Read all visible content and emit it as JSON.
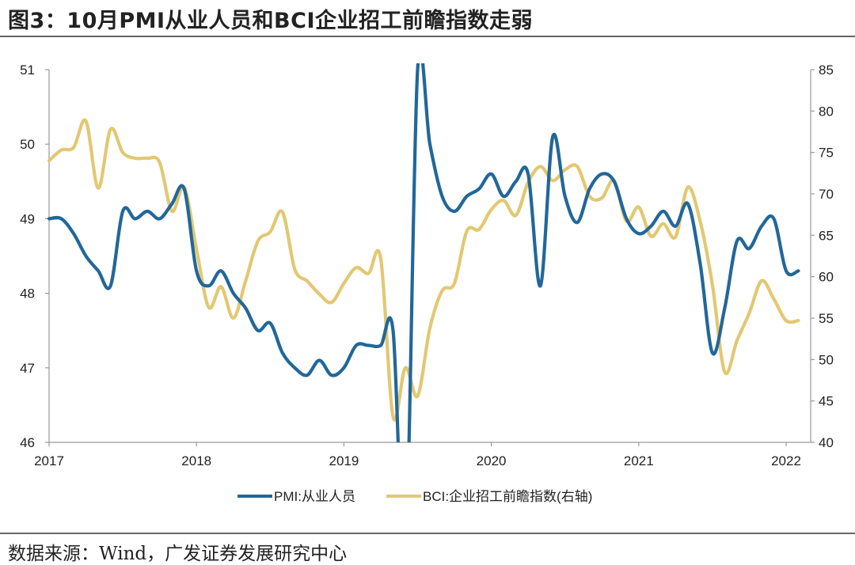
{
  "header": {
    "title": "图3：10月PMI从业人员和BCI企业招工前瞻指数走弱"
  },
  "footer": {
    "source": "数据来源：Wind，广发证券发展研究中心"
  },
  "colors": {
    "pmi": "#21679A",
    "bci": "#E2C872",
    "axis": "#999999"
  },
  "chart_data": {
    "type": "line",
    "title": "10月PMI从业人员和BCI企业招工前瞻指数走弱",
    "xlabel": "",
    "ylabel_left": "",
    "ylabel_right": "",
    "x_ticks": [
      "2017",
      "2018",
      "2019",
      "2020",
      "2021",
      "2022"
    ],
    "x_start": "2017-01",
    "x_range_years": [
      2017,
      2022.2
    ],
    "y_left": {
      "range": [
        46,
        51
      ],
      "ticks": [
        "46",
        "47",
        "48",
        "49",
        "50",
        "51"
      ]
    },
    "y_right": {
      "range": [
        40,
        85
      ],
      "ticks": [
        "40",
        "45",
        "50",
        "55",
        "60",
        "65",
        "70",
        "75",
        "80",
        "85"
      ]
    },
    "grid": false,
    "legend_position": "bottom",
    "series": [
      {
        "name": "PMI:从业人员",
        "axis": "left",
        "x_month_index": [
          0,
          1,
          2,
          3,
          4,
          5,
          6,
          7,
          8,
          9,
          10,
          11,
          12,
          13,
          14,
          15,
          16,
          17,
          18,
          19,
          20,
          21,
          22,
          23,
          24,
          25,
          26,
          27,
          28,
          29,
          30,
          31,
          32,
          33,
          34,
          35,
          36,
          37,
          38,
          39,
          40,
          41,
          42,
          43,
          44,
          45,
          46,
          47,
          48,
          49,
          50,
          51,
          52,
          53,
          54,
          55,
          56,
          57,
          58,
          59,
          60,
          61
        ],
        "values": [
          49.0,
          49.0,
          48.8,
          48.5,
          48.3,
          48.1,
          49.1,
          49.0,
          49.1,
          49.0,
          49.2,
          49.4,
          48.3,
          48.1,
          48.3,
          48.0,
          47.8,
          47.5,
          47.6,
          47.2,
          47.0,
          46.9,
          47.1,
          46.9,
          47.0,
          47.3,
          47.3,
          47.3,
          47.5,
          44.5,
          51.0,
          50.0,
          49.3,
          49.1,
          49.3,
          49.4,
          49.6,
          49.3,
          49.5,
          49.6,
          48.1,
          50.1,
          49.3,
          48.95,
          49.4,
          49.6,
          49.5,
          49.0,
          48.8,
          48.9,
          49.1,
          48.9,
          49.2,
          48.4,
          47.2,
          47.8,
          48.7,
          48.6,
          48.9,
          49.0,
          48.3,
          48.3
        ]
      },
      {
        "name": "BCI:企业招工前瞻指数(右轴)",
        "axis": "right",
        "x_month_index": [
          0,
          1,
          2,
          3,
          4,
          5,
          6,
          7,
          8,
          9,
          10,
          11,
          12,
          13,
          14,
          15,
          16,
          17,
          18,
          19,
          20,
          21,
          22,
          23,
          24,
          25,
          26,
          27,
          28,
          29,
          30,
          31,
          32,
          33,
          34,
          35,
          36,
          37,
          38,
          39,
          40,
          41,
          42,
          43,
          44,
          45,
          46,
          47,
          48,
          49,
          50,
          51,
          52,
          53,
          54,
          55,
          56,
          57,
          58,
          59,
          60,
          61
        ],
        "values": [
          74.0,
          75.3,
          75.6,
          78.8,
          70.7,
          77.8,
          75.0,
          74.3,
          74.3,
          73.8,
          67.9,
          70.8,
          63.3,
          56.3,
          58.8,
          55.0,
          59.5,
          64.3,
          65.4,
          67.8,
          60.9,
          59.5,
          57.9,
          56.9,
          59.2,
          61.1,
          60.4,
          62.2,
          43.1,
          49.0,
          45.6,
          53.8,
          58.3,
          59.2,
          65.5,
          65.7,
          68.1,
          69.2,
          67.4,
          71.4,
          73.3,
          71.6,
          72.9,
          73.3,
          69.7,
          69.5,
          71.6,
          66.7,
          68.4,
          64.9,
          66.4,
          64.8,
          70.8,
          66.7,
          59.0,
          48.5,
          52.3,
          55.6,
          59.5,
          57.3,
          54.7,
          54.7
        ]
      }
    ]
  }
}
